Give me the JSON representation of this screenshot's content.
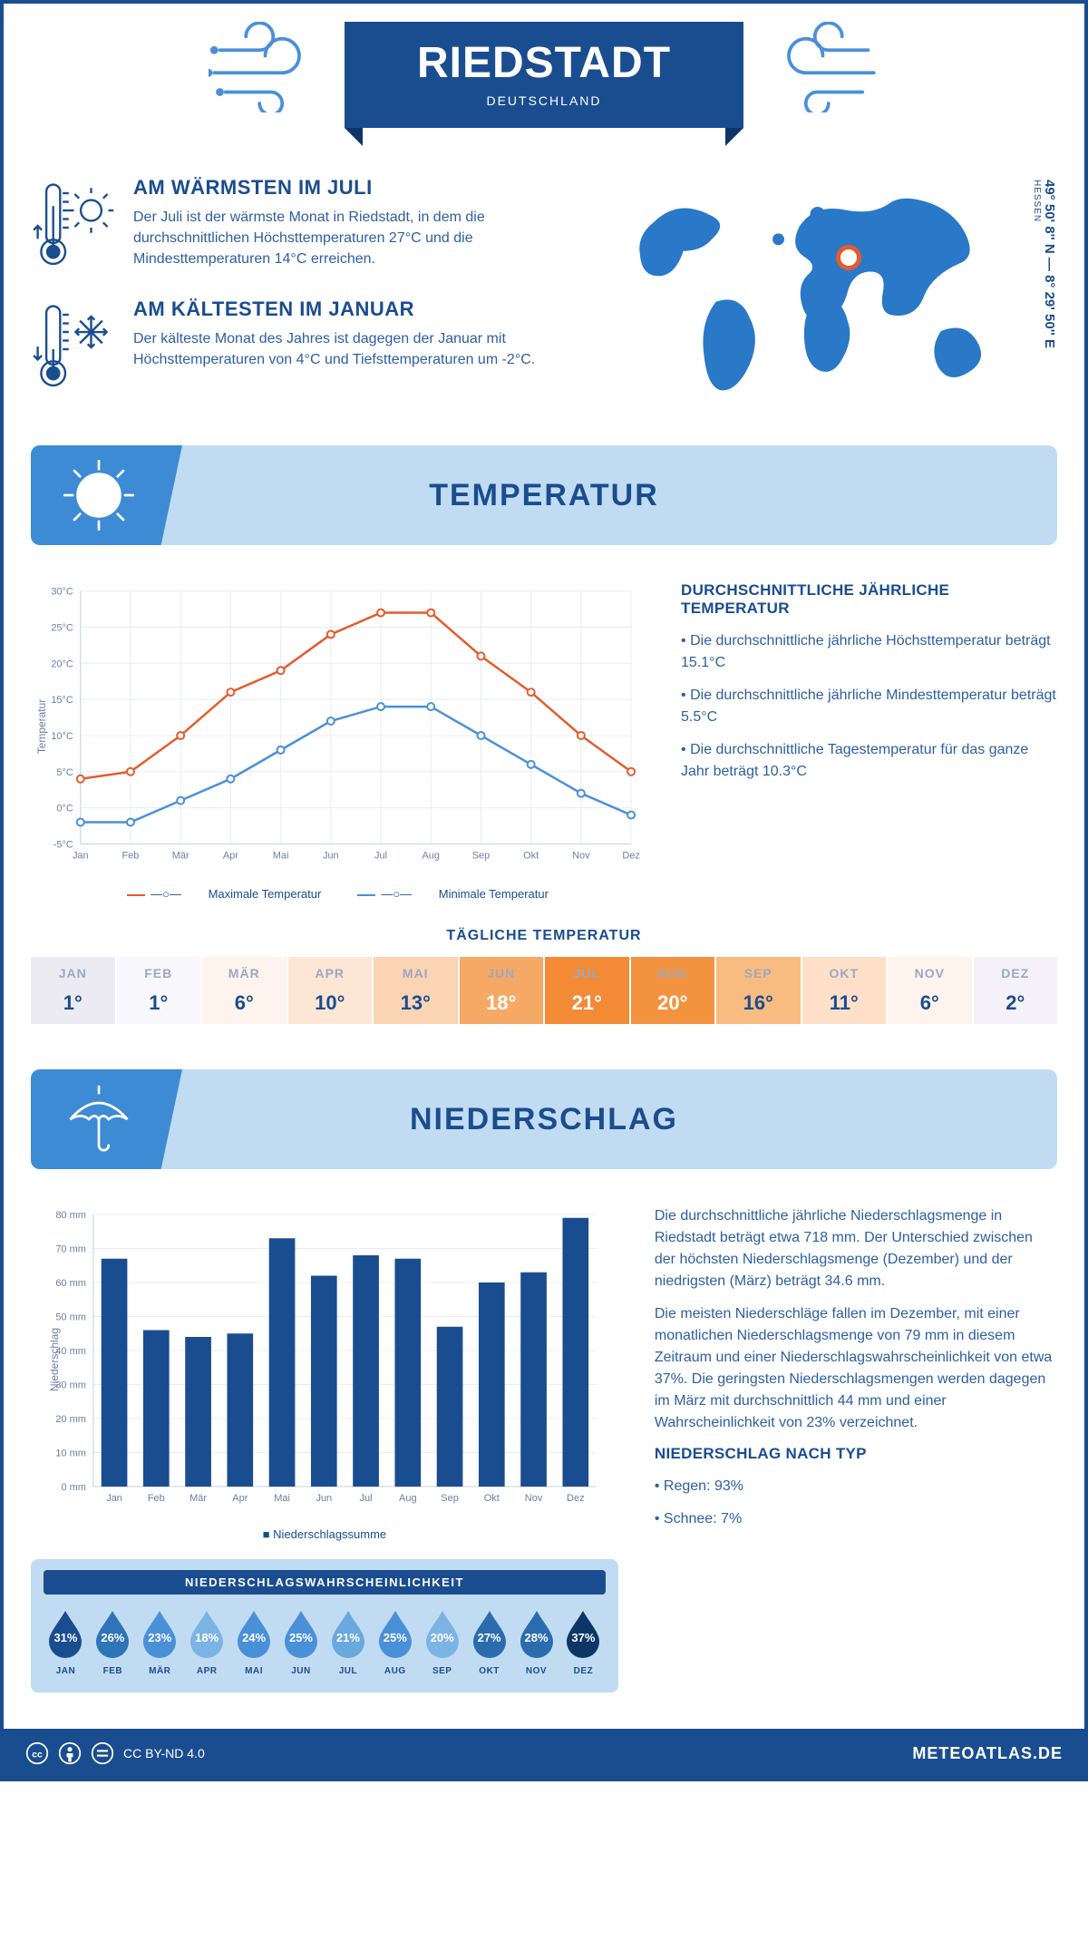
{
  "header": {
    "city": "RIEDSTADT",
    "country": "DEUTSCHLAND",
    "coords": "49° 50' 8'' N — 8° 29' 50'' E",
    "region": "HESSEN"
  },
  "colors": {
    "primary": "#1a4d8f",
    "accent": "#3d8bd4",
    "light": "#c1dcf2",
    "line_max": "#e45b2d",
    "line_min": "#4a90d9",
    "bar": "#1a4d8f",
    "world": "#2a78c8",
    "marker": "#e45b2d"
  },
  "facts": {
    "warm": {
      "title": "AM WÄRMSTEN IM JULI",
      "text": "Der Juli ist der wärmste Monat in Riedstadt, in dem die durchschnittlichen Höchsttemperaturen 27°C und die Mindesttemperaturen 14°C erreichen."
    },
    "cold": {
      "title": "AM KÄLTESTEN IM JANUAR",
      "text": "Der kälteste Monat des Jahres ist dagegen der Januar mit Höchsttemperaturen von 4°C und Tiefsttemperaturen um -2°C."
    }
  },
  "sections": {
    "temperature": "TEMPERATUR",
    "precipitation": "NIEDERSCHLAG"
  },
  "temp_chart": {
    "months": [
      "Jan",
      "Feb",
      "Mär",
      "Apr",
      "Mai",
      "Jun",
      "Jul",
      "Aug",
      "Sep",
      "Okt",
      "Nov",
      "Dez"
    ],
    "max": [
      4,
      5,
      10,
      16,
      19,
      24,
      27,
      27,
      21,
      16,
      10,
      5
    ],
    "min": [
      -2,
      -2,
      1,
      4,
      8,
      12,
      14,
      14,
      10,
      6,
      2,
      -1
    ],
    "ylim": [
      -5,
      30
    ],
    "ytick": 5,
    "ylabel": "Temperatur",
    "legend_max": "Maximale Temperatur",
    "legend_min": "Minimale Temperatur"
  },
  "temp_text": {
    "heading": "DURCHSCHNITTLICHE JÄHRLICHE TEMPERATUR",
    "b1": "• Die durchschnittliche jährliche Höchsttemperatur beträgt 15.1°C",
    "b2": "• Die durchschnittliche jährliche Mindesttemperatur beträgt 5.5°C",
    "b3": "• Die durchschnittliche Tagestemperatur für das ganze Jahr beträgt 10.3°C"
  },
  "daily_temp": {
    "heading": "TÄGLICHE TEMPERATUR",
    "months": [
      "JAN",
      "FEB",
      "MÄR",
      "APR",
      "MAI",
      "JUN",
      "JUL",
      "AUG",
      "SEP",
      "OKT",
      "NOV",
      "DEZ"
    ],
    "values": [
      "1°",
      "1°",
      "6°",
      "10°",
      "13°",
      "18°",
      "21°",
      "20°",
      "16°",
      "11°",
      "6°",
      "2°"
    ],
    "cell_bg": [
      "#eceaf3",
      "#f8f7fb",
      "#fef4ed",
      "#fde6d3",
      "#fbd4b4",
      "#f6a964",
      "#f28a36",
      "#f39340",
      "#f9bc80",
      "#fde0c7",
      "#fef4ed",
      "#f4f2f8"
    ],
    "hot_flags": [
      false,
      false,
      false,
      false,
      false,
      true,
      true,
      true,
      false,
      false,
      false,
      false
    ]
  },
  "precip_chart": {
    "months": [
      "Jan",
      "Feb",
      "Mär",
      "Apr",
      "Mai",
      "Jun",
      "Jul",
      "Aug",
      "Sep",
      "Okt",
      "Nov",
      "Dez"
    ],
    "values": [
      67,
      46,
      44,
      45,
      73,
      62,
      68,
      67,
      47,
      60,
      63,
      79
    ],
    "ylim": [
      0,
      80
    ],
    "ytick": 10,
    "ylabel": "Niederschlag",
    "legend": "Niederschlagssumme"
  },
  "precip_text": {
    "p1": "Die durchschnittliche jährliche Niederschlagsmenge in Riedstadt beträgt etwa 718 mm. Der Unterschied zwischen der höchsten Niederschlagsmenge (Dezember) und der niedrigsten (März) beträgt 34.6 mm.",
    "p2": "Die meisten Niederschläge fallen im Dezember, mit einer monatlichen Niederschlagsmenge von 79 mm in diesem Zeitraum und einer Niederschlagswahrscheinlichkeit von etwa 37%. Die geringsten Niederschlagsmengen werden dagegen im März mit durchschnittlich 44 mm und einer Wahrscheinlichkeit von 23% verzeichnet.",
    "type_heading": "NIEDERSCHLAG NACH TYP",
    "type1": "• Regen: 93%",
    "type2": "• Schnee: 7%"
  },
  "prob": {
    "heading": "NIEDERSCHLAGSWAHRSCHEINLICHKEIT",
    "months": [
      "JAN",
      "FEB",
      "MÄR",
      "APR",
      "MAI",
      "JUN",
      "JUL",
      "AUG",
      "SEP",
      "OKT",
      "NOV",
      "DEZ"
    ],
    "values": [
      "31%",
      "26%",
      "23%",
      "18%",
      "24%",
      "25%",
      "21%",
      "25%",
      "20%",
      "27%",
      "28%",
      "37%"
    ],
    "drop_fill": [
      "#1a4d8f",
      "#3074b8",
      "#4a90d9",
      "#7bb3e4",
      "#4a90d9",
      "#4a90d9",
      "#6aa8de",
      "#4a90d9",
      "#7bb3e4",
      "#2a6cad",
      "#2a6cad",
      "#0d3666"
    ]
  },
  "footer": {
    "license": "CC BY-ND 4.0",
    "site": "METEOATLAS.DE"
  }
}
